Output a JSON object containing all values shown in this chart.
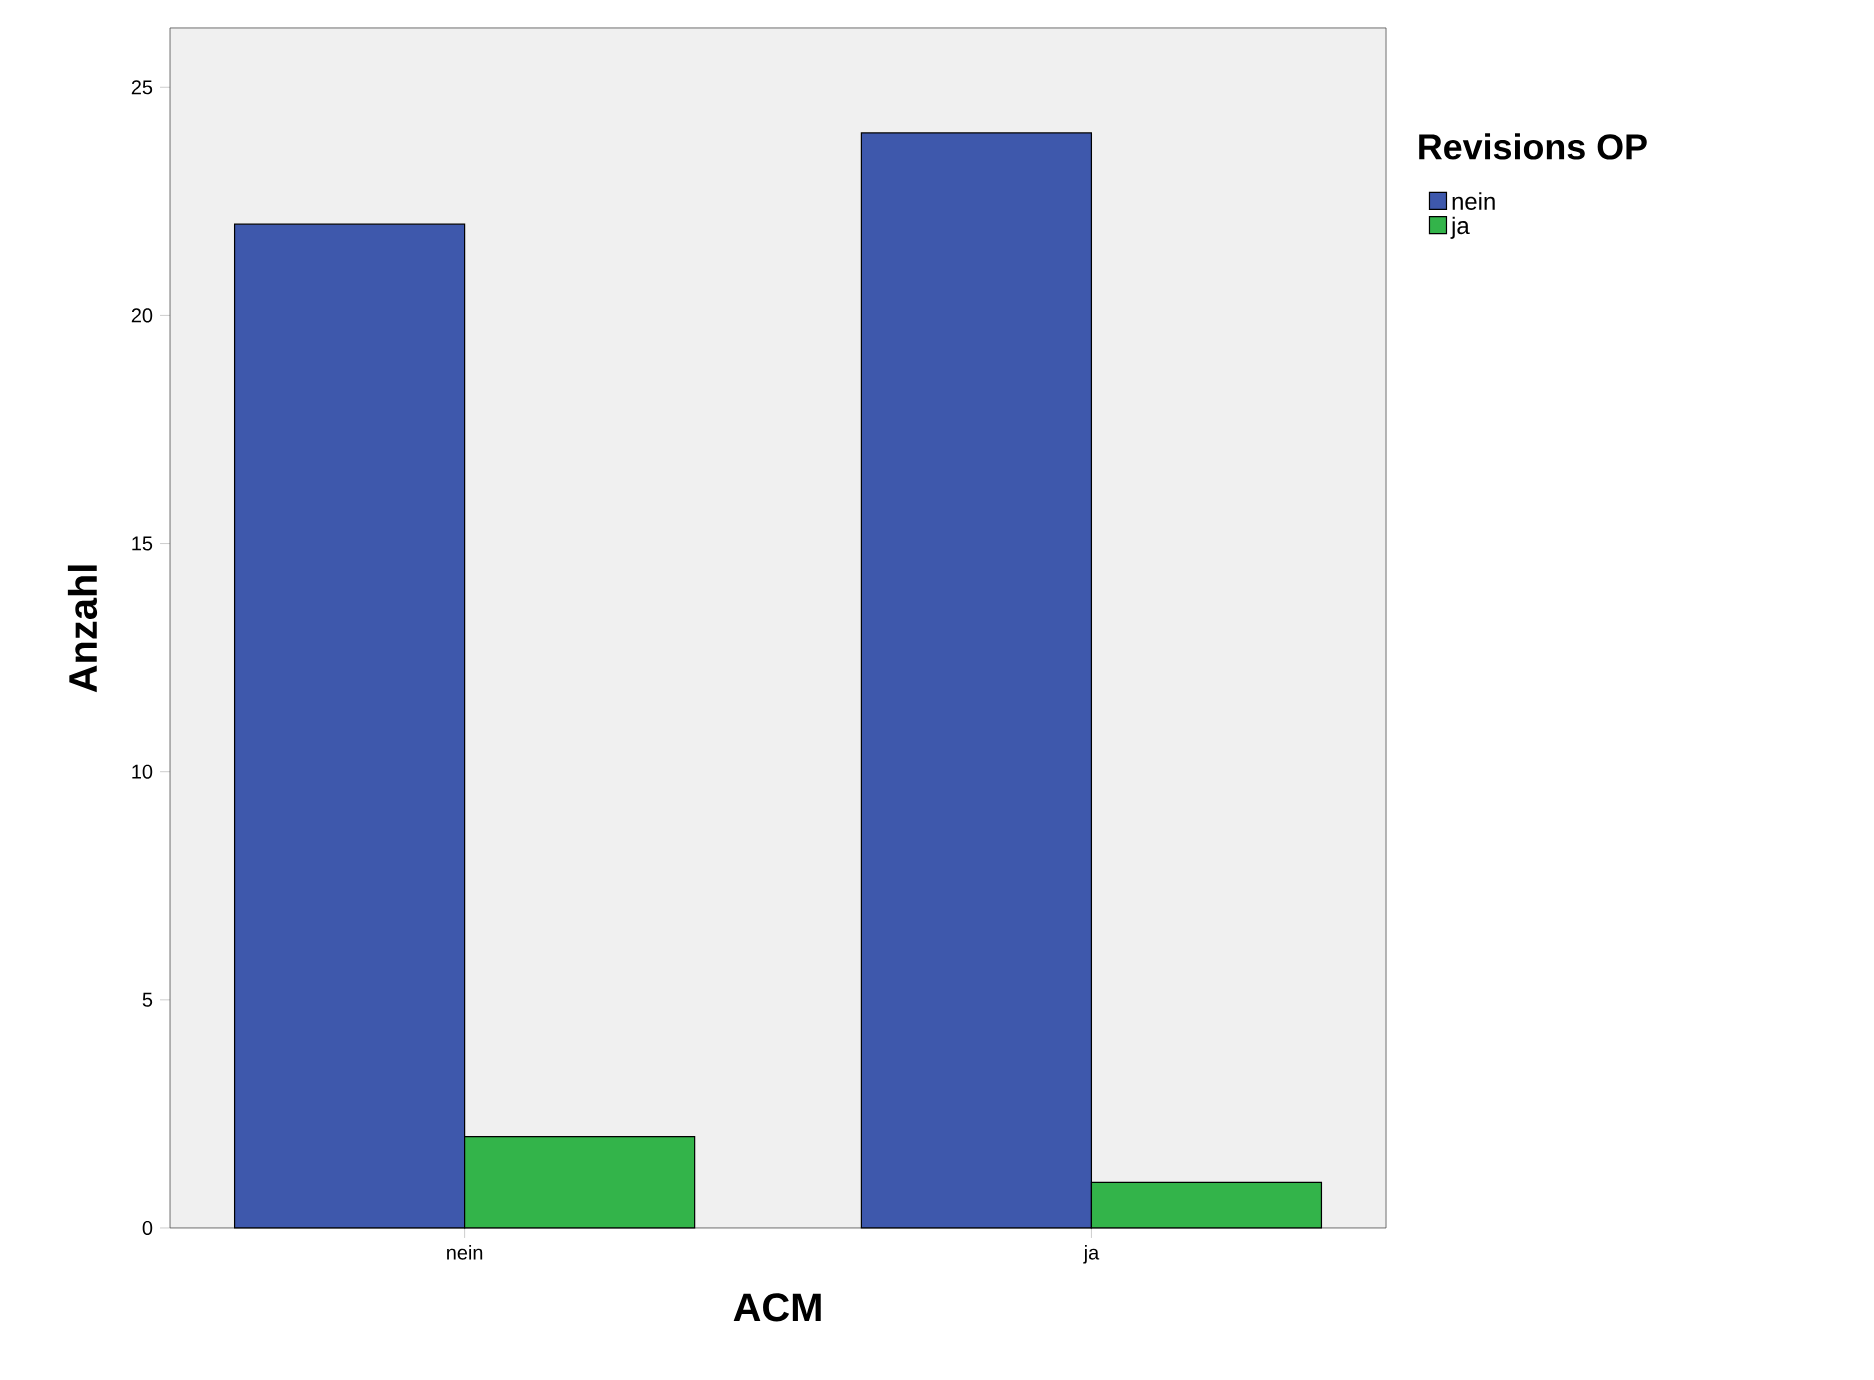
{
  "chart_data": {
    "type": "bar",
    "xlabel": "ACM",
    "ylabel": "Anzahl",
    "legend_title": "Revisions OP",
    "categories": [
      "nein",
      "ja"
    ],
    "series": [
      {
        "name": "nein",
        "color": "#3e58ac",
        "values": [
          22,
          24
        ]
      },
      {
        "name": "ja",
        "color": "#33b44a",
        "values": [
          2,
          1
        ]
      }
    ],
    "ylim": [
      0,
      26.3
    ],
    "yticks": [
      0,
      5,
      10,
      15,
      20,
      25
    ],
    "grid": false,
    "legend": "top right"
  }
}
